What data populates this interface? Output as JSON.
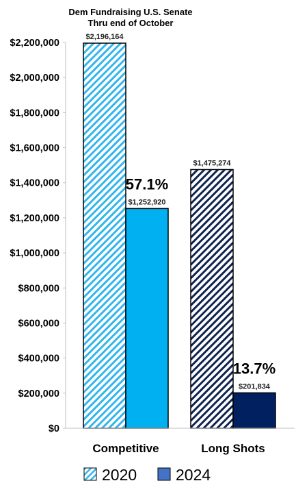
{
  "chart_data": {
    "type": "bar",
    "title": [
      "Dem Fundraising U.S. Senate",
      "Thru end of October"
    ],
    "categories": [
      "Competitive",
      "Long Shots"
    ],
    "series": [
      {
        "name": "2020",
        "values": [
          2196164,
          1475274
        ],
        "labels": [
          "$2,196,164",
          "$1,475,274"
        ],
        "colors": [
          "#33b5ec",
          "#0f2350"
        ],
        "pattern": "diagonal-hatch"
      },
      {
        "name": "2024",
        "values": [
          1252920,
          201834
        ],
        "labels": [
          "$1,252,920",
          "$201,834"
        ],
        "colors": [
          "#00b0f0",
          "#002060"
        ],
        "pattern": "solid"
      }
    ],
    "annotations": [
      "57.1%",
      "13.7%"
    ],
    "yticks": [
      "$0",
      "$200,000",
      "$400,000",
      "$600,000",
      "$800,000",
      "$1,000,000",
      "$1,200,000",
      "$1,400,000",
      "$1,600,000",
      "$1,800,000",
      "$2,000,000",
      "$2,200,000"
    ],
    "ylim": [
      0,
      2200000
    ],
    "grid": false,
    "legend": "bottom",
    "legend_colors": [
      "#33b5ec",
      "#4472c4"
    ]
  }
}
